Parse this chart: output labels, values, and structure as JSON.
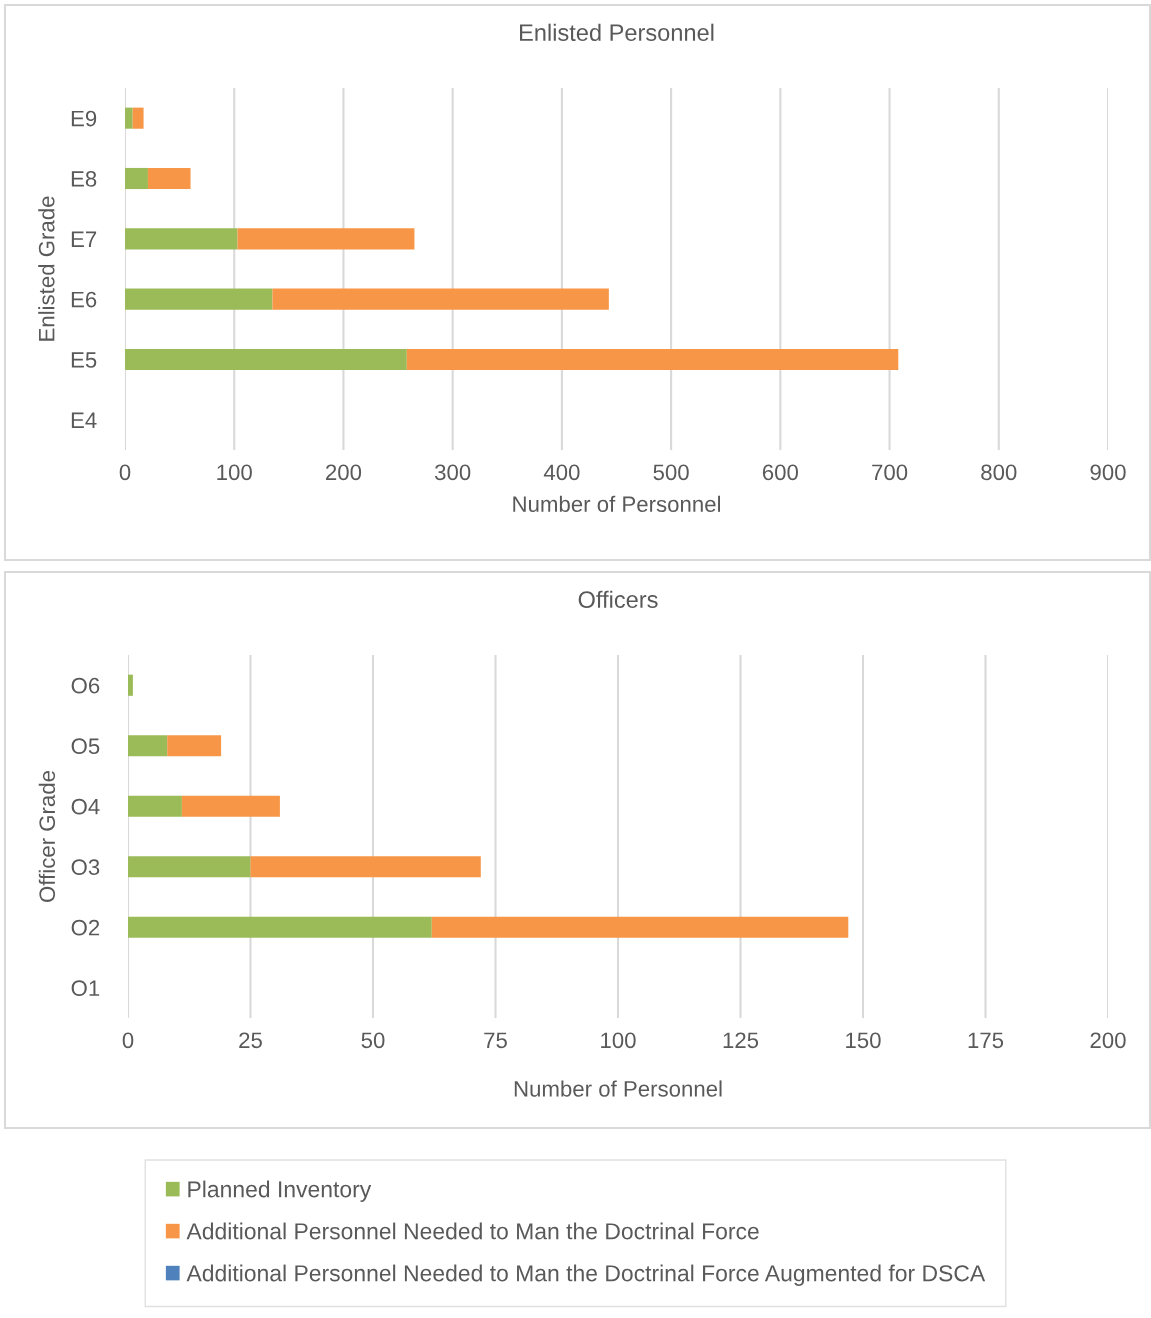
{
  "chart_data": [
    {
      "type": "bar",
      "orientation": "horizontal",
      "stacked": true,
      "title": "Enlisted Personnel",
      "xlabel": "Number of Personnel",
      "ylabel": "Enlisted Grade",
      "categories": [
        "E9",
        "E8",
        "E7",
        "E6",
        "E5",
        "E4"
      ],
      "xlim": [
        0,
        900
      ],
      "xticks": [
        0,
        100,
        200,
        300,
        400,
        500,
        600,
        700,
        800,
        900
      ],
      "grid": "x",
      "series": [
        {
          "color": "#9bbb59",
          "values": [
            7,
            21,
            103,
            135,
            258,
            0
          ]
        },
        {
          "color": "#f79646",
          "values": [
            10,
            39,
            162,
            308,
            450,
            0
          ]
        },
        {
          "color": "#4f81bd",
          "values": [
            0,
            0,
            0,
            0,
            0,
            0
          ]
        }
      ]
    },
    {
      "type": "bar",
      "orientation": "horizontal",
      "stacked": true,
      "title": "Officers",
      "xlabel": "Number of Personnel",
      "ylabel": "Officer Grade",
      "categories": [
        "O6",
        "O5",
        "O4",
        "O3",
        "O2",
        "O1"
      ],
      "xlim": [
        0,
        200
      ],
      "xticks": [
        0,
        25,
        50,
        75,
        100,
        125,
        150,
        175,
        200
      ],
      "grid": "x",
      "legend": "bottom",
      "series": [
        {
          "name": "Planned Inventory",
          "color": "#9bbb59",
          "values": [
            1,
            8,
            11,
            25,
            62,
            0
          ]
        },
        {
          "name": "Additional Personnel Needed to Man the Doctrinal Force",
          "color": "#f79646",
          "values": [
            0,
            11,
            20,
            47,
            85,
            0
          ]
        },
        {
          "name": "Additional Personnel Needed to Man the Doctrinal Force Augmented for DSCA",
          "color": "#4f81bd",
          "values": [
            0,
            0,
            0,
            0,
            0,
            0
          ]
        }
      ]
    }
  ]
}
